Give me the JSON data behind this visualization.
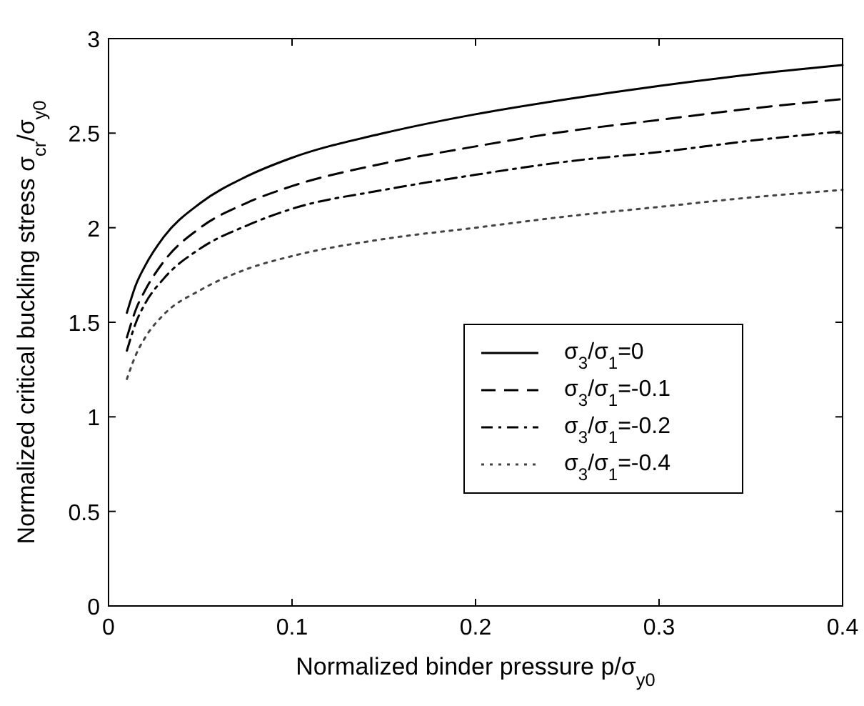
{
  "chart_data": {
    "type": "line",
    "xlabel": "Normalized binder pressure p/σ$_{y0}$",
    "ylabel": "Normalized critical buckling stress σ$_{cr}$/σ$_{y0}$",
    "x": [
      0.01,
      0.015,
      0.02,
      0.03,
      0.05,
      0.075,
      0.1,
      0.15,
      0.2,
      0.25,
      0.3,
      0.35,
      0.4
    ],
    "series": [
      {
        "name": "σ$_{3}$/σ$_{1}$=0",
        "color": "#000000",
        "line_style": "solid",
        "values": [
          1.55,
          1.7,
          1.8,
          1.95,
          2.13,
          2.27,
          2.37,
          2.5,
          2.6,
          2.68,
          2.75,
          2.81,
          2.86
        ]
      },
      {
        "name": "σ$_{3}$/σ$_{1}$=-0.1",
        "color": "#000000",
        "line_style": "dashed",
        "values": [
          1.42,
          1.57,
          1.67,
          1.82,
          2.0,
          2.13,
          2.22,
          2.34,
          2.43,
          2.51,
          2.57,
          2.63,
          2.68
        ]
      },
      {
        "name": "σ$_{3}$/σ$_{1}$=-0.2",
        "color": "#000000",
        "line_style": "dashdot",
        "values": [
          1.35,
          1.5,
          1.6,
          1.73,
          1.89,
          2.01,
          2.1,
          2.2,
          2.28,
          2.35,
          2.4,
          2.46,
          2.51
        ]
      },
      {
        "name": "σ$_{3}$/σ$_{1}$=-0.4",
        "color": "#444444",
        "line_style": "dotted",
        "values": [
          1.2,
          1.33,
          1.42,
          1.54,
          1.67,
          1.78,
          1.85,
          1.94,
          2.0,
          2.06,
          2.11,
          2.16,
          2.2
        ]
      }
    ],
    "xlim": [
      0,
      0.4
    ],
    "xticks": [
      0,
      0.1,
      0.2,
      0.3,
      0.4
    ],
    "ylim": [
      0,
      3
    ],
    "yticks": [
      0,
      0.5,
      1,
      1.5,
      2,
      2.5,
      3
    ],
    "legend": "right",
    "grid": false
  }
}
